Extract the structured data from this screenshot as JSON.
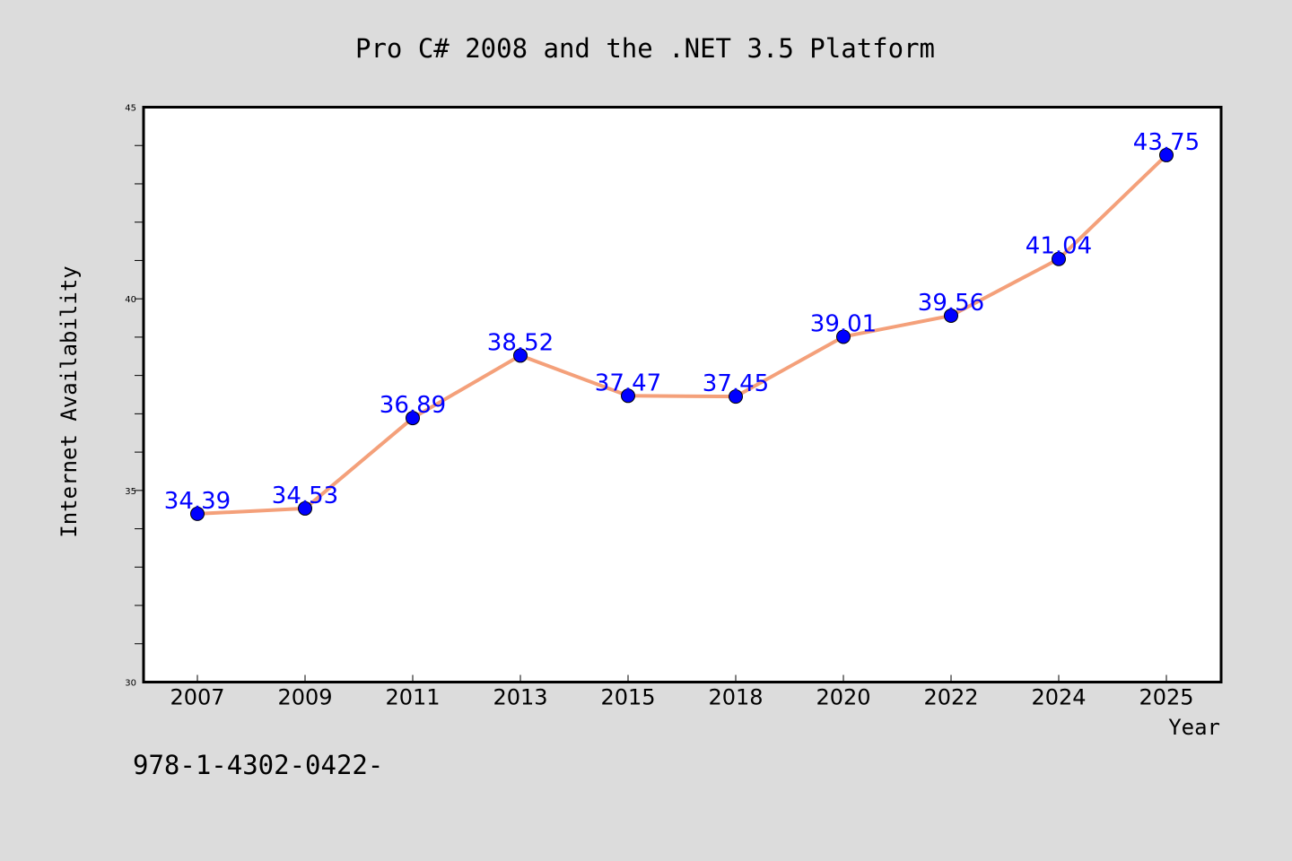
{
  "chart_data": {
    "type": "line",
    "title": "Pro C# 2008 and the .NET 3.5 Platform",
    "xlabel": "Year",
    "ylabel": "Internet Availability",
    "categories": [
      "2007",
      "2009",
      "2011",
      "2013",
      "2015",
      "2018",
      "2020",
      "2022",
      "2024",
      "2025"
    ],
    "values": [
      34.39,
      34.53,
      36.89,
      38.52,
      37.47,
      37.45,
      39.01,
      39.56,
      41.04,
      43.75
    ],
    "data_labels": [
      "34.39",
      "34.53",
      "36.89",
      "38.52",
      "37.47",
      "37.45",
      "39.01",
      "39.56",
      "41.04",
      "43.75"
    ],
    "ylim": [
      30,
      45
    ],
    "yticks": [
      30,
      35,
      40,
      45
    ],
    "ytick_labels": [
      "30",
      "35",
      "40",
      "45"
    ],
    "grid": false,
    "line_color": "#f4a07a",
    "marker_color": "#0000ff",
    "label_color": "#0000ff",
    "background": "#dcdcdc",
    "plot_background": "#ffffff"
  },
  "footer": {
    "text": "978-1-4302-0422-"
  }
}
